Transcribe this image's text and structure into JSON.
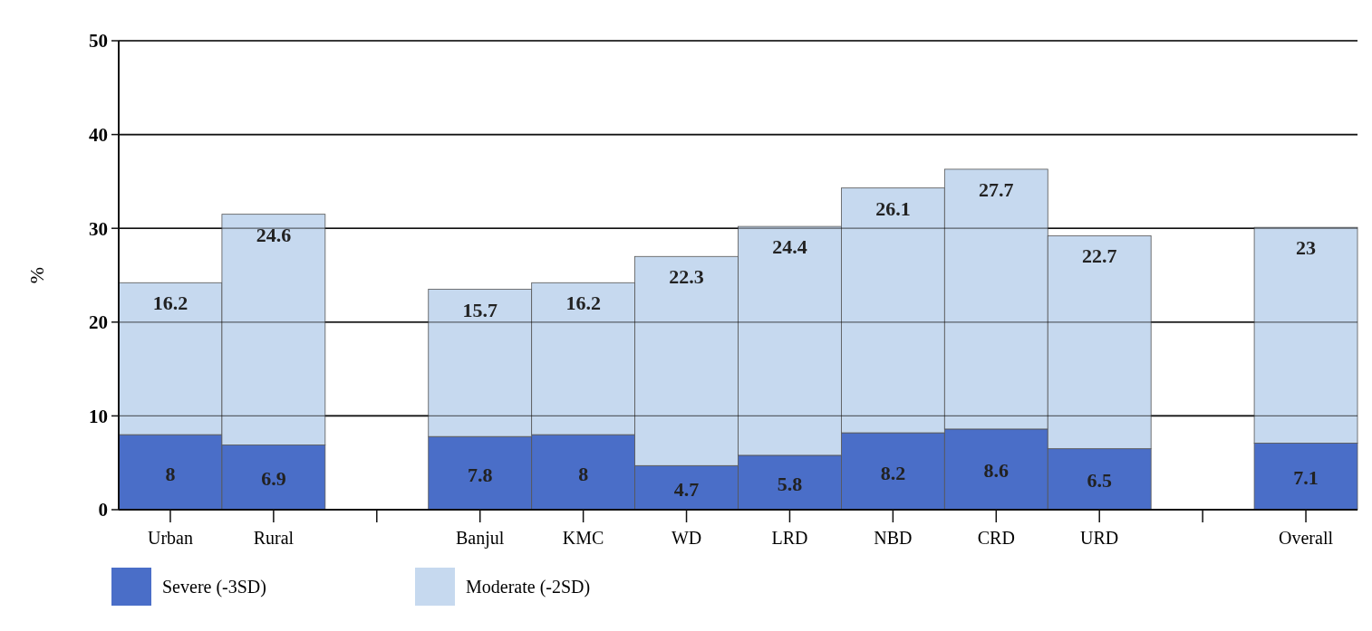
{
  "chart_data": {
    "type": "bar",
    "stacked": true,
    "ylabel": "%",
    "categories": [
      "Urban",
      "Rural",
      null,
      "Banjul",
      "KMC",
      "WD",
      "LRD",
      "NBD",
      "CRD",
      "URD",
      null,
      "Overall"
    ],
    "series": [
      {
        "name": "Severe (-3SD)",
        "color": "#4a6ec8",
        "values": [
          8,
          6.9,
          null,
          7.8,
          8,
          4.7,
          5.8,
          8.2,
          8.6,
          6.5,
          null,
          7.1
        ]
      },
      {
        "name": "Moderate (-2SD)",
        "color": "#c6d9ef",
        "values": [
          16.2,
          24.6,
          null,
          15.7,
          16.2,
          22.3,
          24.4,
          26.1,
          27.7,
          22.7,
          null,
          23
        ]
      }
    ],
    "ylim": [
      0,
      50
    ],
    "yticks": [
      0,
      10,
      20,
      30,
      40,
      50
    ],
    "grid": "y",
    "legend": "bottom left",
    "data_labels": true
  }
}
